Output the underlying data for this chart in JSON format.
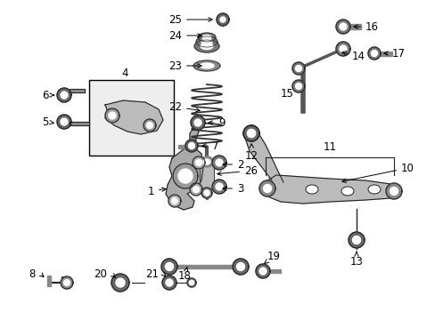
{
  "bg_color": "#ffffff",
  "fig_width": 4.89,
  "fig_height": 3.6,
  "dpi": 100,
  "line_color": "#222222",
  "part_color": "#555555",
  "label_font_size": 8.5
}
